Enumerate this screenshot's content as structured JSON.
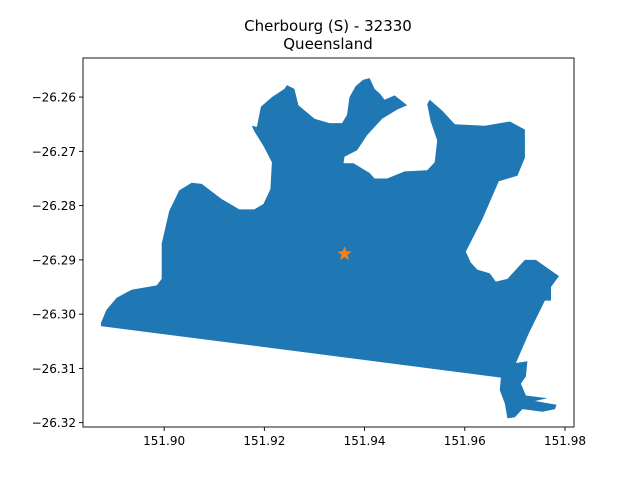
{
  "chart_data": {
    "type": "map",
    "title": "Cherbourg (S) - 32330",
    "subtitle": "Queensland",
    "xlim": [
      151.8838,
      151.9818
    ],
    "ylim": [
      -26.3208,
      -26.2528
    ],
    "x_ticks": [
      151.9,
      151.92,
      151.94,
      151.96,
      151.98
    ],
    "x_tick_labels": [
      "151.90",
      "151.92",
      "151.94",
      "151.96",
      "151.98"
    ],
    "y_ticks": [
      -26.26,
      -26.27,
      -26.28,
      -26.29,
      -26.3,
      -26.31,
      -26.32
    ],
    "y_tick_labels": [
      "−26.26",
      "−26.27",
      "−26.28",
      "−26.29",
      "−26.30",
      "−26.31",
      "−26.32"
    ],
    "grid": false,
    "fill_color": "#1f77b4",
    "marker_color": "#ff7f0e",
    "marker_symbol": "star",
    "centroid": {
      "x": 151.936,
      "y": -26.2889
    },
    "boundary": [
      [
        151.8874,
        -26.3016
      ],
      [
        151.8885,
        -26.2992
      ],
      [
        151.8905,
        -26.297
      ],
      [
        151.8935,
        -26.2955
      ],
      [
        151.8985,
        -26.2947
      ],
      [
        151.8995,
        -26.2935
      ],
      [
        151.8995,
        -26.287
      ],
      [
        151.901,
        -26.281
      ],
      [
        151.903,
        -26.2772
      ],
      [
        151.9055,
        -26.2758
      ],
      [
        151.9075,
        -26.276
      ],
      [
        151.9115,
        -26.2788
      ],
      [
        151.915,
        -26.2807
      ],
      [
        151.918,
        -26.2807
      ],
      [
        151.9198,
        -26.2797
      ],
      [
        151.9212,
        -26.277
      ],
      [
        151.9215,
        -26.272
      ],
      [
        151.9198,
        -26.269
      ],
      [
        151.918,
        -26.2663
      ],
      [
        151.9175,
        -26.2653
      ],
      [
        151.9185,
        -26.2655
      ],
      [
        151.9193,
        -26.2618
      ],
      [
        151.9215,
        -26.26
      ],
      [
        151.924,
        -26.2585
      ],
      [
        151.9245,
        -26.2578
      ],
      [
        151.926,
        -26.2585
      ],
      [
        151.9268,
        -26.2615
      ],
      [
        151.93,
        -26.264
      ],
      [
        151.933,
        -26.2648
      ],
      [
        151.9355,
        -26.2648
      ],
      [
        151.9365,
        -26.2633
      ],
      [
        151.937,
        -26.26
      ],
      [
        151.9382,
        -26.258
      ],
      [
        151.9397,
        -26.2568
      ],
      [
        151.941,
        -26.2565
      ],
      [
        151.942,
        -26.2585
      ],
      [
        151.9432,
        -26.2595
      ],
      [
        151.944,
        -26.2605
      ],
      [
        151.946,
        -26.2597
      ],
      [
        151.9485,
        -26.2615
      ],
      [
        151.9465,
        -26.2623
      ],
      [
        151.9435,
        -26.264
      ],
      [
        151.9405,
        -26.267
      ],
      [
        151.9385,
        -26.2698
      ],
      [
        151.936,
        -26.271
      ],
      [
        151.9358,
        -26.2722
      ],
      [
        151.9378,
        -26.2722
      ],
      [
        151.941,
        -26.274
      ],
      [
        151.942,
        -26.275
      ],
      [
        151.9445,
        -26.275
      ],
      [
        151.948,
        -26.2737
      ],
      [
        151.9525,
        -26.2735
      ],
      [
        151.954,
        -26.272
      ],
      [
        151.9545,
        -26.268
      ],
      [
        151.9532,
        -26.2645
      ],
      [
        151.9525,
        -26.2613
      ],
      [
        151.953,
        -26.2605
      ],
      [
        151.9545,
        -26.2617
      ],
      [
        151.9555,
        -26.2625
      ],
      [
        151.958,
        -26.265
      ],
      [
        151.964,
        -26.2653
      ],
      [
        151.969,
        -26.2645
      ],
      [
        151.972,
        -26.266
      ],
      [
        151.972,
        -26.2712
      ],
      [
        151.9705,
        -26.2745
      ],
      [
        151.9668,
        -26.2755
      ],
      [
        151.9635,
        -26.2825
      ],
      [
        151.9602,
        -26.2885
      ],
      [
        151.9612,
        -26.2905
      ],
      [
        151.9625,
        -26.2918
      ],
      [
        151.965,
        -26.2925
      ],
      [
        151.9662,
        -26.294
      ],
      [
        151.9685,
        -26.2935
      ],
      [
        151.9705,
        -26.2915
      ],
      [
        151.972,
        -26.29
      ],
      [
        151.9742,
        -26.29
      ],
      [
        151.9765,
        -26.2915
      ],
      [
        151.9788,
        -26.293
      ],
      [
        151.9772,
        -26.295
      ],
      [
        151.9772,
        -26.2975
      ],
      [
        151.976,
        -26.2975
      ],
      [
        151.9728,
        -26.3035
      ],
      [
        151.9702,
        -26.309
      ],
      [
        151.9725,
        -26.3087
      ],
      [
        151.9722,
        -26.3115
      ],
      [
        151.9712,
        -26.3128
      ],
      [
        151.9722,
        -26.315
      ],
      [
        151.9765,
        -26.3155
      ],
      [
        151.974,
        -26.316
      ],
      [
        151.9783,
        -26.3167
      ],
      [
        151.978,
        -26.3175
      ],
      [
        151.9755,
        -26.318
      ],
      [
        151.9715,
        -26.3175
      ],
      [
        151.97,
        -26.319
      ],
      [
        151.9685,
        -26.3192
      ],
      [
        151.968,
        -26.3165
      ],
      [
        151.967,
        -26.314
      ],
      [
        151.9672,
        -26.3117
      ],
      [
        151.8874,
        -26.3022
      ]
    ]
  }
}
